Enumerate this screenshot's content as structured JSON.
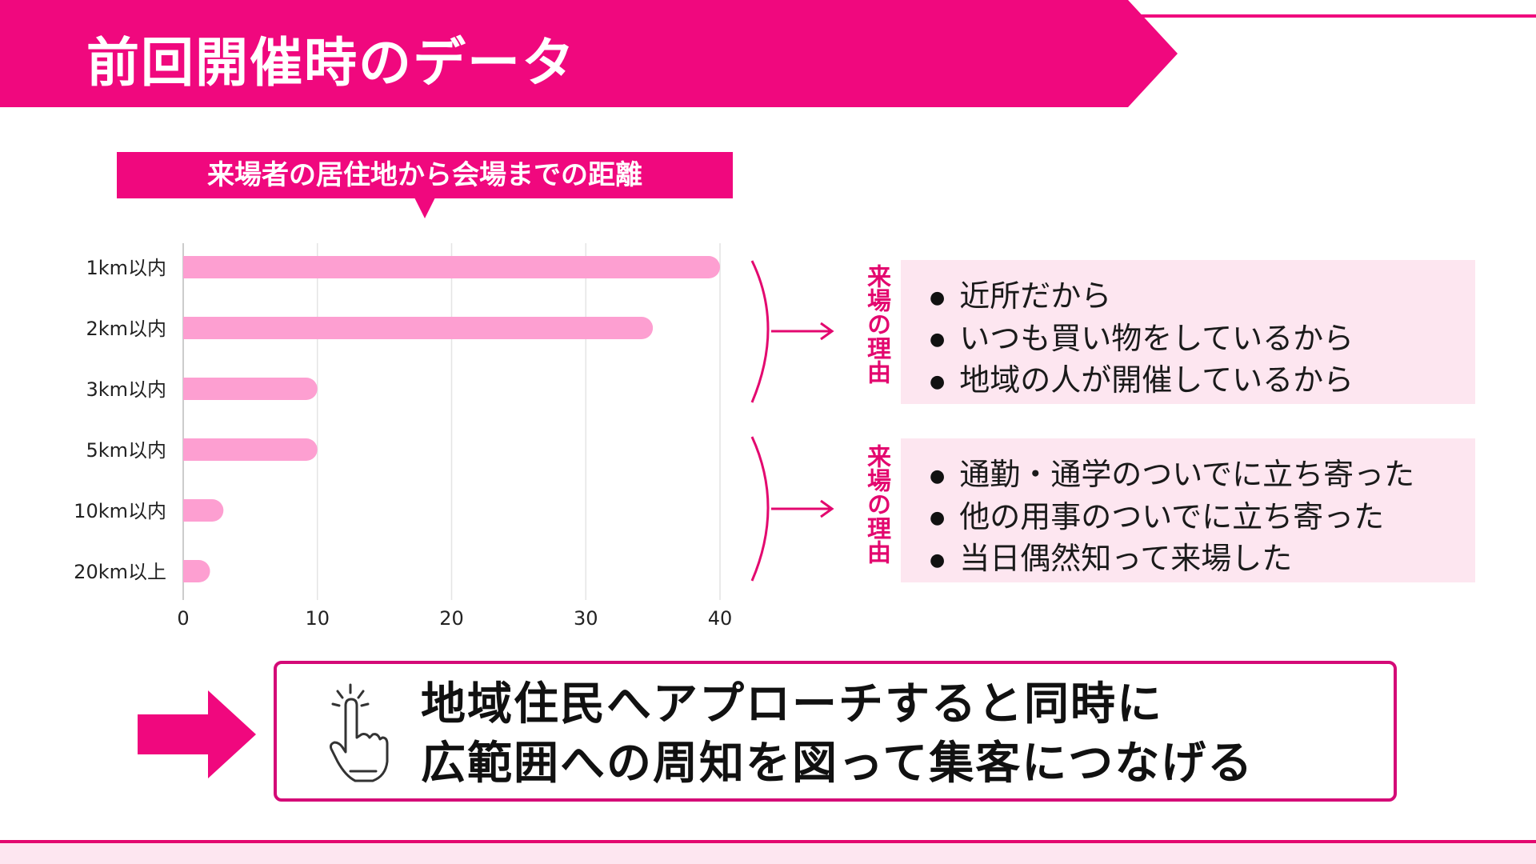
{
  "header": {
    "title": "前回開催時のデータ"
  },
  "chart_data": {
    "type": "bar",
    "orientation": "horizontal",
    "title": "来場者の居住地から会場までの距離",
    "categories": [
      "1km以内",
      "2km以内",
      "3km以内",
      "5km以内",
      "10km以内",
      "20km以上"
    ],
    "values": [
      40,
      35,
      10,
      10,
      3,
      2
    ],
    "x_ticks": [
      "0",
      "10",
      "20",
      "30",
      "40"
    ],
    "xlim": [
      0,
      40
    ],
    "grid": "vertical",
    "bar_color": "#fd9fd1",
    "legend": "none"
  },
  "reasons": [
    {
      "label": "来場の理由",
      "items": [
        "近所だから",
        "いつも買い物をしているから",
        "地域の人が開催しているから"
      ]
    },
    {
      "label": "来場の理由",
      "items": [
        "通勤・通学のついでに立ち寄った",
        "他の用事のついでに立ち寄った",
        "当日偶然知って来場した"
      ]
    }
  ],
  "conclusion": {
    "line1": "地域住民へアプローチすると同時に",
    "line2": "広範囲への周知を図って集客につなげる",
    "icon": "pointing-hand-icon"
  },
  "colors": {
    "accent": "#f0087e",
    "bar": "#fd9fd1",
    "panel": "#fde6f0",
    "reason_text": "#e3086f"
  }
}
